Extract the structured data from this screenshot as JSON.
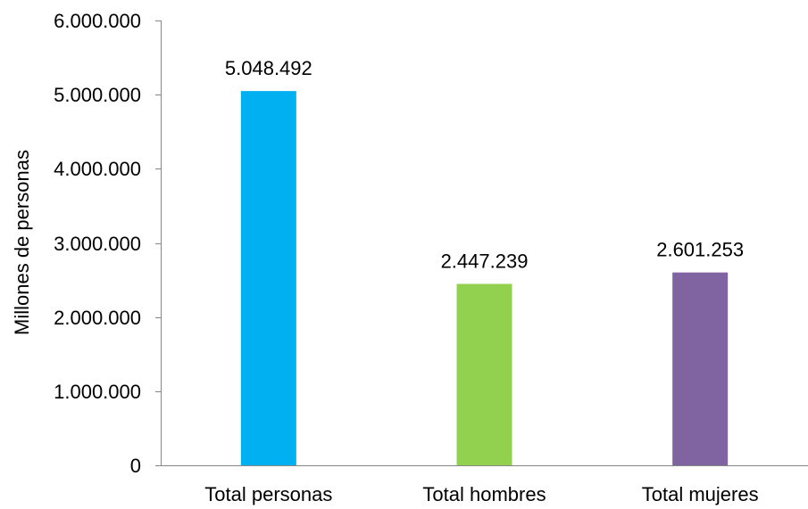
{
  "chart_data": {
    "type": "bar",
    "title": "",
    "xlabel": "",
    "ylabel": "Millones de personas",
    "ylim": [
      0,
      6000000
    ],
    "yticks": [
      0,
      1000000,
      2000000,
      3000000,
      4000000,
      5000000,
      6000000
    ],
    "ytick_labels": [
      "0",
      "1.000.000",
      "2.000.000",
      "3.000.000",
      "4.000.000",
      "5.000.000",
      "6.000.000"
    ],
    "categories": [
      "Total personas",
      "Total hombres",
      "Total mujeres"
    ],
    "values": [
      5048492,
      2447239,
      2601253
    ],
    "data_labels": [
      "5.048.492",
      "2.447.239",
      "2.601.253"
    ],
    "colors": [
      "#00B0F0",
      "#92D050",
      "#8064A2"
    ],
    "grid": false,
    "legend": "none"
  }
}
